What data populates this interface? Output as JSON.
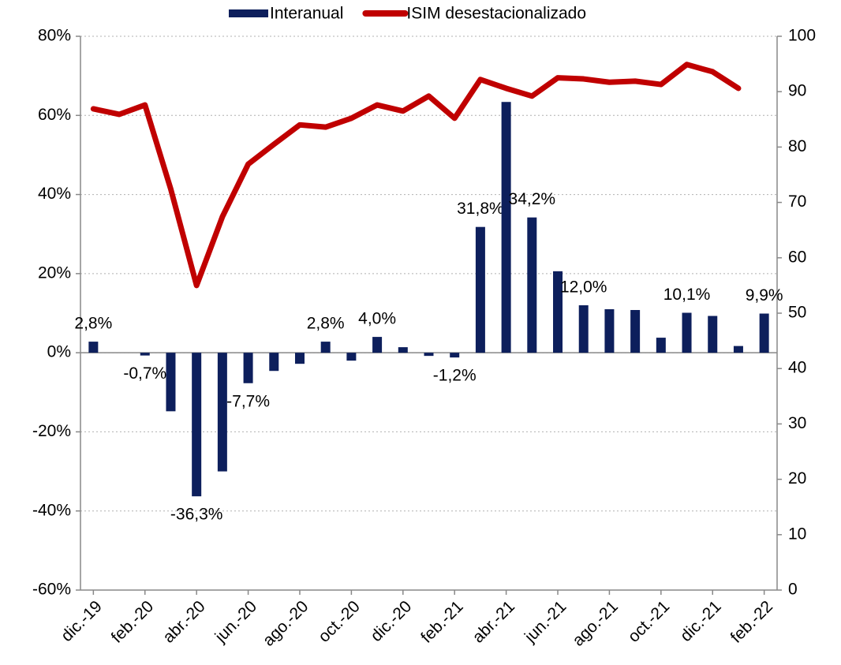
{
  "chart_data": {
    "type": "bar",
    "categories": [
      "dic.-19",
      null,
      "feb.-20",
      null,
      "abr.-20",
      null,
      "jun.-20",
      null,
      "ago.-20",
      null,
      "oct.-20",
      null,
      "dic.-20",
      null,
      "feb.-21",
      null,
      "abr.-21",
      null,
      "jun.-21",
      null,
      "ago.-21",
      null,
      "oct.-21",
      null,
      "dic.-21",
      null,
      "feb.-22"
    ],
    "series": [
      {
        "name": "Interanual",
        "type": "bar",
        "color": "#0d1f5c",
        "values": [
          2.8,
          0,
          -0.7,
          -14.8,
          -36.3,
          -30,
          -7.7,
          -4.6,
          -2.8,
          2.8,
          -2,
          4.0,
          1.4,
          -0.8,
          -1.2,
          31.8,
          63.4,
          34.2,
          20.6,
          12.0,
          11,
          10.8,
          3.8,
          10.1,
          9.3,
          1.7,
          9.9
        ],
        "value_labels": [
          "2,8%",
          null,
          "-0,7%",
          null,
          "-36,3%",
          null,
          "-7,7%",
          null,
          null,
          "2,8%",
          null,
          "4,0%",
          null,
          null,
          "-1,2%",
          "31,8%",
          null,
          "34,2%",
          null,
          "12,0%",
          null,
          null,
          null,
          "10,1%",
          null,
          null,
          "9,9%"
        ]
      },
      {
        "name": "ISIM desestacionalizado",
        "type": "line",
        "axis": "y2",
        "color": "#c00000",
        "values": [
          86.9,
          85.9,
          87.6,
          72.4,
          55.0,
          67.4,
          76.9,
          80.5,
          84.0,
          83.6,
          85.2,
          87.6,
          86.5,
          89.2,
          85.2,
          92.2,
          90.6,
          89.2,
          92.5,
          92.3,
          91.7,
          91.9,
          91.3,
          94.9,
          93.6,
          90.6,
          null
        ]
      }
    ],
    "ylim": [
      -60,
      80
    ],
    "yticks": [
      {
        "value": -60,
        "label": "-60%"
      },
      {
        "value": -40,
        "label": "-40%"
      },
      {
        "value": -20,
        "label": "-20%"
      },
      {
        "value": 0,
        "label": "0%"
      },
      {
        "value": 20,
        "label": "20%"
      },
      {
        "value": 40,
        "label": "40%"
      },
      {
        "value": 60,
        "label": "60%"
      },
      {
        "value": 80,
        "label": "80%"
      }
    ],
    "y2lim": [
      0,
      100
    ],
    "y2ticks": [
      0,
      10,
      20,
      30,
      40,
      50,
      60,
      70,
      80,
      90,
      100
    ],
    "grid": true,
    "legend": "top"
  }
}
